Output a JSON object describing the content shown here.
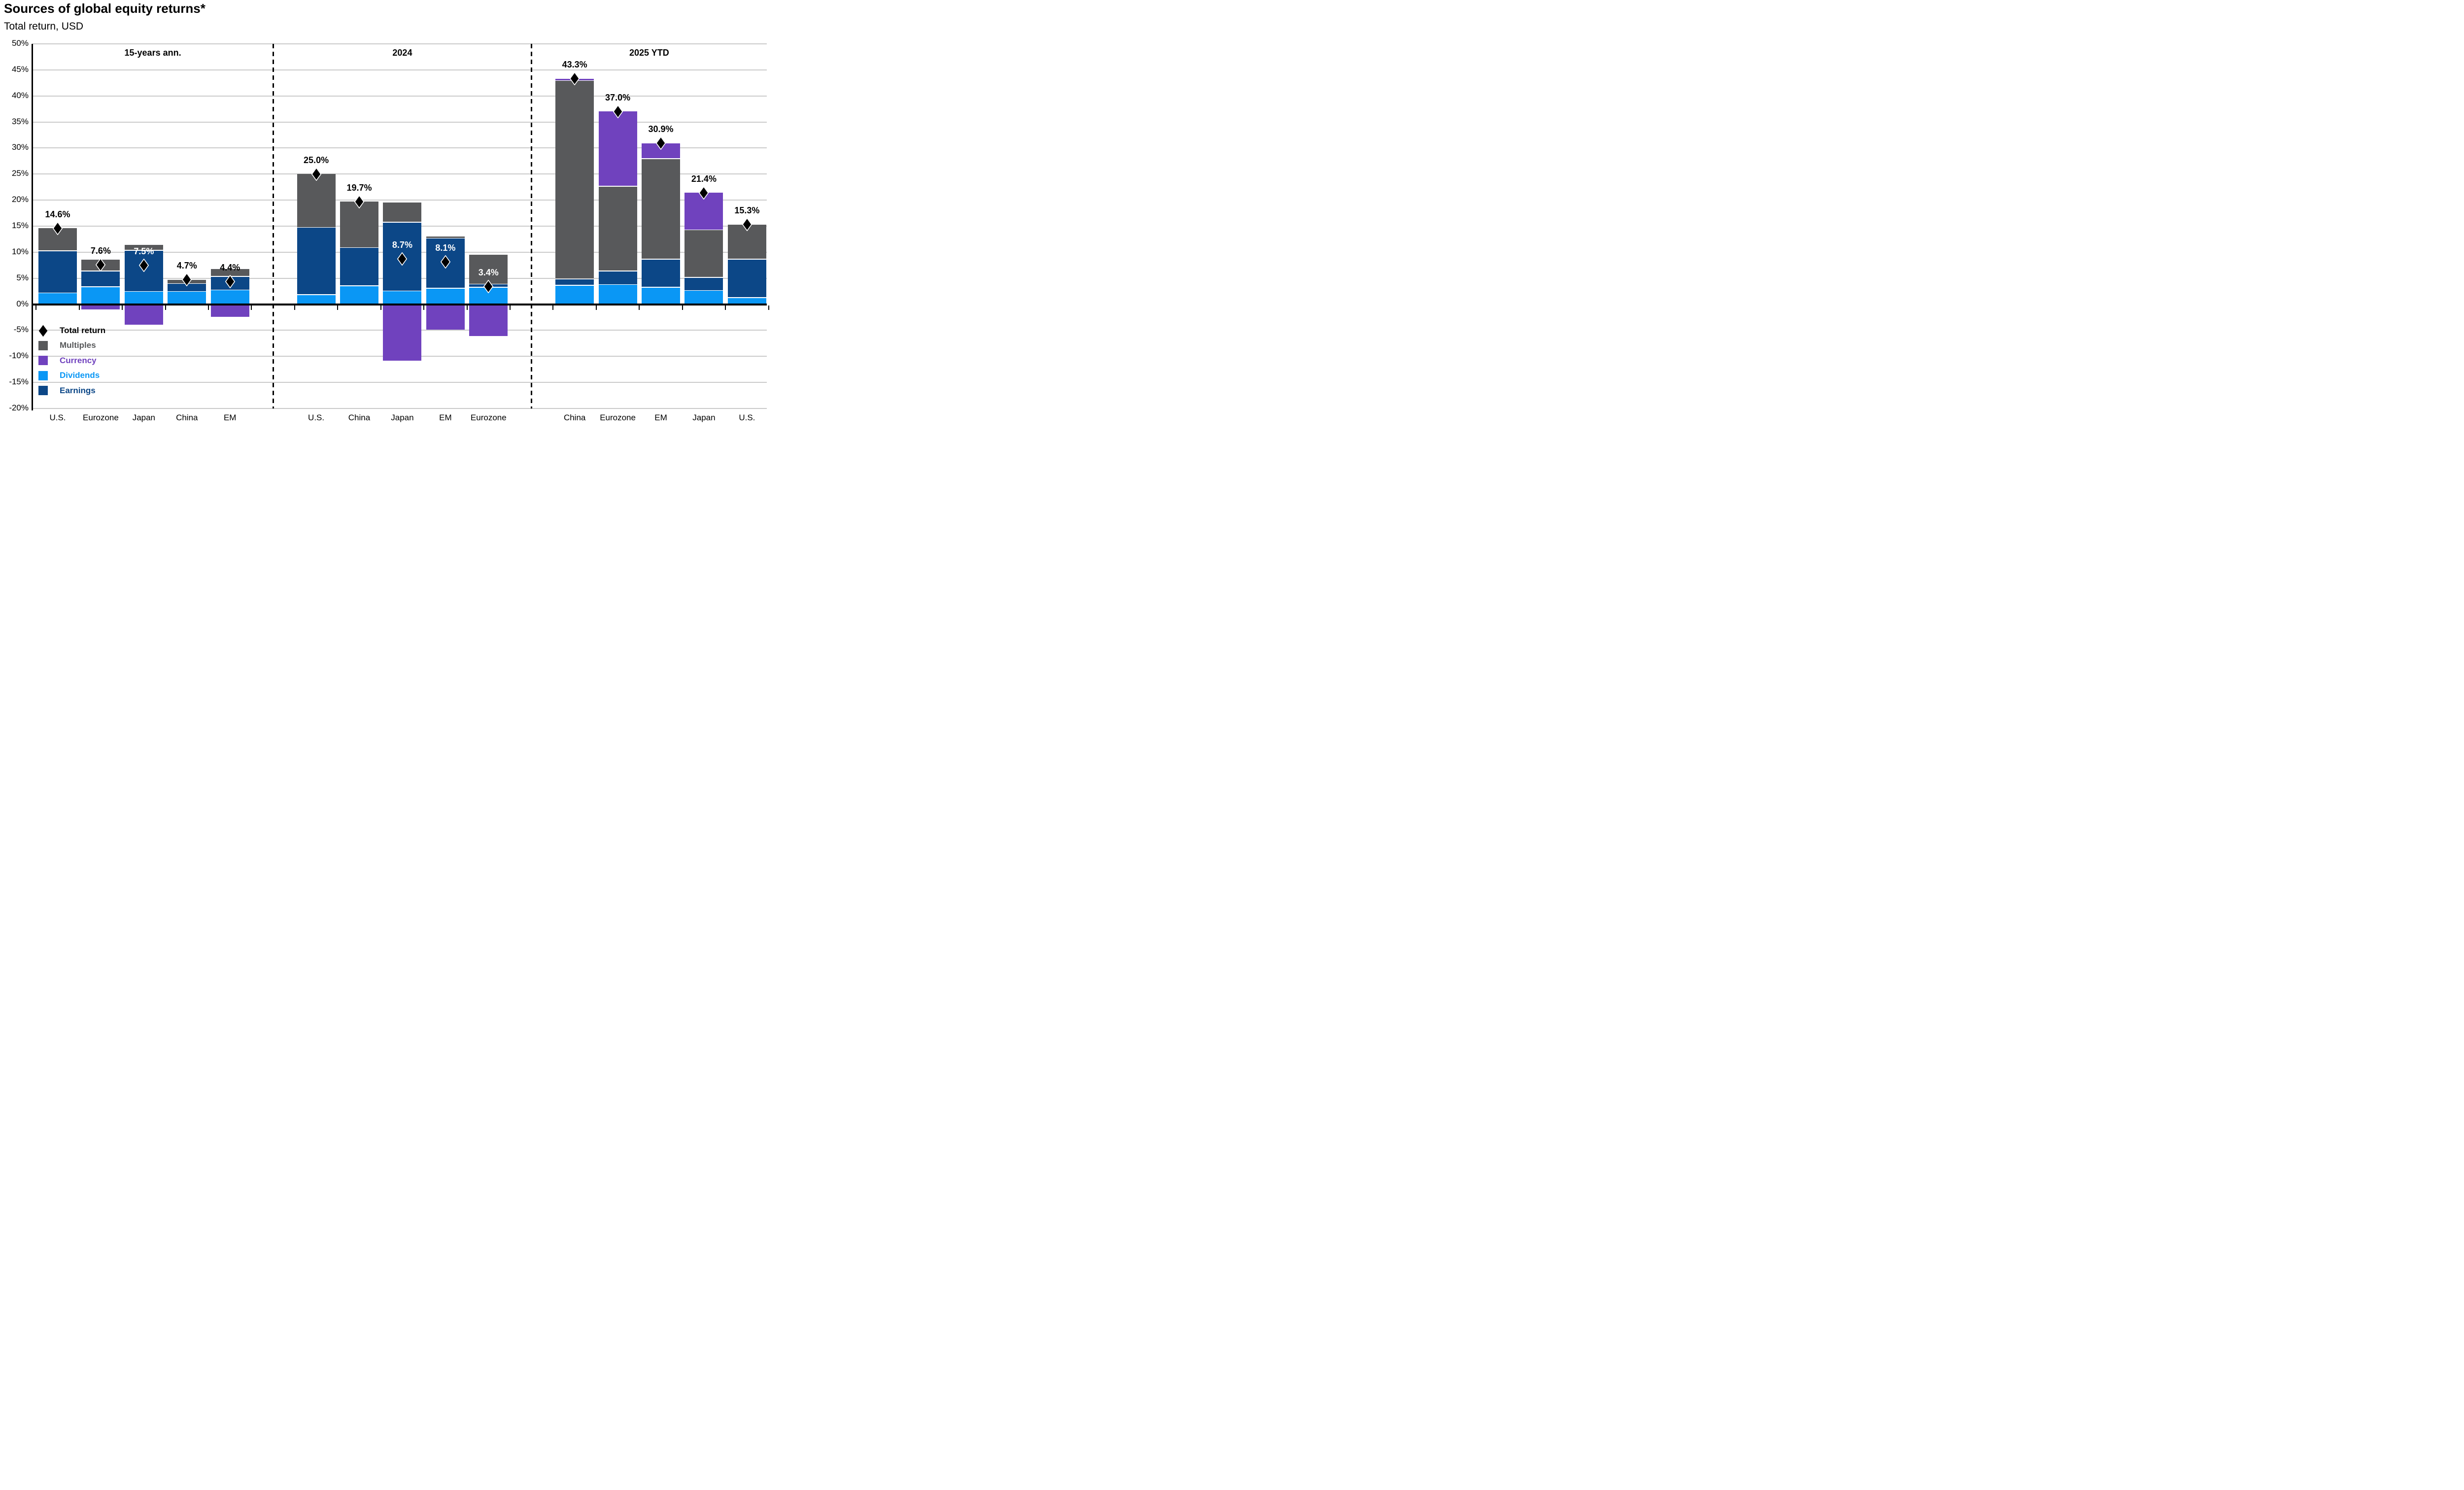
{
  "title": "Sources of global equity returns*",
  "subtitle": "Total return, USD",
  "colors": {
    "multiples": "#58595B",
    "currency": "#7042BE",
    "dividends": "#0A97F5",
    "earnings": "#0C4787",
    "total_marker": "#000000",
    "gridline": "#CBCBCB",
    "axis": "#000000"
  },
  "legend": {
    "items": [
      {
        "label": "Total return",
        "type": "diamond",
        "color": "#000000"
      },
      {
        "label": "Multiples",
        "type": "swatch",
        "color": "#58595B"
      },
      {
        "label": "Currency",
        "type": "swatch",
        "color": "#7042BE"
      },
      {
        "label": "Dividends",
        "type": "swatch",
        "color": "#0A97F5"
      },
      {
        "label": "Earnings",
        "type": "swatch",
        "color": "#0C4787"
      }
    ]
  },
  "chart_data": {
    "type": "bar",
    "stacked": true,
    "unit": "percent",
    "ylim": [
      -20,
      50
    ],
    "ytick_step": 5,
    "grid": true,
    "legend_position": "inside-bottom-left",
    "series_order": [
      "Dividends",
      "Earnings",
      "Multiples",
      "Currency"
    ],
    "marker_series": "Total return",
    "y_axis_labels": [
      "50%",
      "45%",
      "40%",
      "35%",
      "30%",
      "25%",
      "20%",
      "15%",
      "10%",
      "5%",
      "0%",
      "-5%",
      "-10%",
      "-15%",
      "-20%"
    ],
    "panels": [
      {
        "header": "15-years ann.",
        "bars": [
          {
            "category": "U.S.",
            "total": 14.6,
            "dividends": 2.1,
            "earnings": 8.1,
            "multiples": 4.4,
            "currency": 0,
            "label": "14.6%",
            "label_color": "black"
          },
          {
            "category": "Eurozone",
            "total": 7.6,
            "dividends": 3.3,
            "earnings": 3.0,
            "multiples": 2.3,
            "currency": -1.0,
            "label": "7.6%",
            "label_color": "black"
          },
          {
            "category": "Japan",
            "total": 7.5,
            "dividends": 2.4,
            "earnings": 7.9,
            "multiples": 1.1,
            "currency": -3.9,
            "label": "7.5%",
            "label_color": "white"
          },
          {
            "category": "China",
            "total": 4.7,
            "dividends": 2.4,
            "earnings": 1.5,
            "multiples": 0.8,
            "currency": 0,
            "label": "4.7%",
            "label_color": "black"
          },
          {
            "category": "EM",
            "total": 4.4,
            "dividends": 2.7,
            "earnings": 2.6,
            "multiples": 1.5,
            "currency": -2.4,
            "label": "4.4%",
            "label_color": "black"
          }
        ]
      },
      {
        "header": "2024",
        "bars": [
          {
            "category": "U.S.",
            "total": 25.0,
            "dividends": 1.8,
            "earnings": 12.9,
            "multiples": 10.3,
            "currency": 0,
            "label": "25.0%",
            "label_color": "black"
          },
          {
            "category": "China",
            "total": 19.7,
            "dividends": 3.5,
            "earnings": 7.3,
            "multiples": 8.9,
            "currency": 0,
            "label": "19.7%",
            "label_color": "black"
          },
          {
            "category": "Japan",
            "total": 8.7,
            "dividends": 2.5,
            "earnings": 13.2,
            "multiples": 3.8,
            "currency": -10.8,
            "label": "8.7%",
            "label_color": "white"
          },
          {
            "category": "EM",
            "total": 8.1,
            "dividends": 3.0,
            "earnings": 9.6,
            "multiples": 0.4,
            "currency": -4.9,
            "label": "8.1%",
            "label_color": "white"
          },
          {
            "category": "Eurozone",
            "total": 3.4,
            "dividends": 3.2,
            "earnings": 0.6,
            "multiples": 5.7,
            "currency": -6.1,
            "label": "3.4%",
            "label_color": "white"
          }
        ]
      },
      {
        "header": "2025 YTD",
        "bars": [
          {
            "category": "China",
            "total": 43.3,
            "dividends": 3.6,
            "earnings": 1.2,
            "multiples": 38.1,
            "currency": 0.4,
            "label": "43.3%",
            "label_color": "black"
          },
          {
            "category": "Eurozone",
            "total": 37.0,
            "dividends": 3.7,
            "earnings": 2.6,
            "multiples": 16.3,
            "currency": 14.4,
            "label": "37.0%",
            "label_color": "black"
          },
          {
            "category": "EM",
            "total": 30.9,
            "dividends": 3.2,
            "earnings": 5.4,
            "multiples": 19.3,
            "currency": 3.0,
            "label": "30.9%",
            "label_color": "black"
          },
          {
            "category": "Japan",
            "total": 21.4,
            "dividends": 2.6,
            "earnings": 2.5,
            "multiples": 9.1,
            "currency": 7.2,
            "label": "21.4%",
            "label_color": "black"
          },
          {
            "category": "U.S.",
            "total": 15.3,
            "dividends": 1.2,
            "earnings": 7.4,
            "multiples": 6.7,
            "currency": 0,
            "label": "15.3%",
            "label_color": "black"
          }
        ]
      }
    ]
  }
}
